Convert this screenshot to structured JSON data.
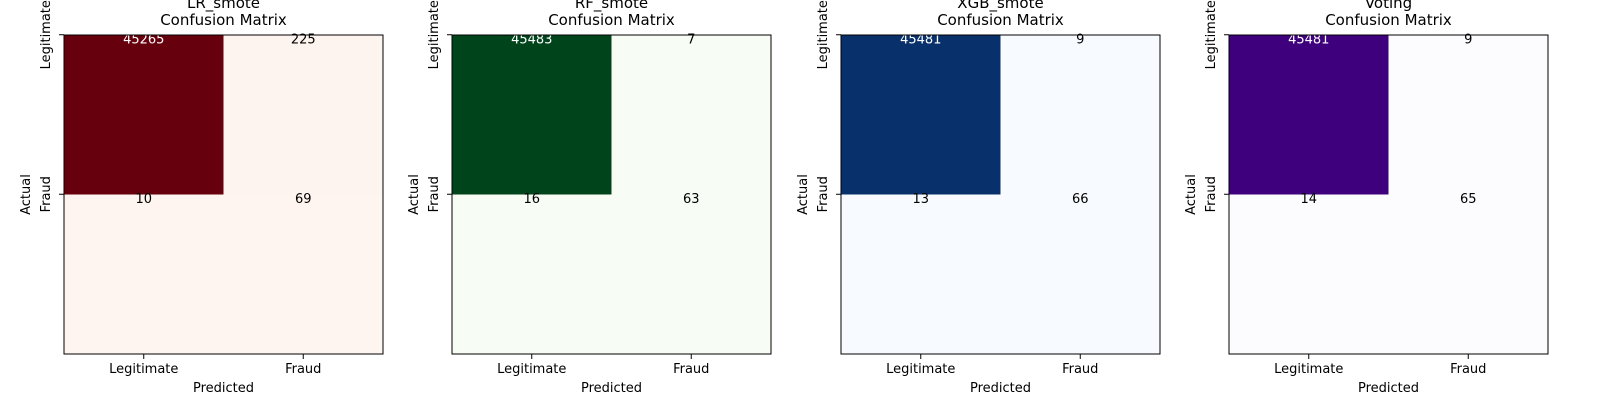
{
  "chart_data": [
    {
      "type": "heatmap",
      "title": "LR_smote",
      "subtitle": "Confusion Matrix",
      "xlabel": "Predicted",
      "ylabel": "Actual",
      "x_categories": [
        "Legitimate",
        "Fraud"
      ],
      "y_categories": [
        "Legitimate",
        "Fraud"
      ],
      "matrix": [
        [
          45265,
          225
        ],
        [
          10,
          69
        ]
      ],
      "colormap": {
        "low": "#fff5f0",
        "high": "#67000d"
      }
    },
    {
      "type": "heatmap",
      "title": "RF_smote",
      "subtitle": "Confusion Matrix",
      "xlabel": "Predicted",
      "ylabel": "Actual",
      "x_categories": [
        "Legitimate",
        "Fraud"
      ],
      "y_categories": [
        "Legitimate",
        "Fraud"
      ],
      "matrix": [
        [
          45483,
          7
        ],
        [
          16,
          63
        ]
      ],
      "colormap": {
        "low": "#f7fcf5",
        "high": "#00441b"
      }
    },
    {
      "type": "heatmap",
      "title": "XGB_smote",
      "subtitle": "Confusion Matrix",
      "xlabel": "Predicted",
      "ylabel": "Actual",
      "x_categories": [
        "Legitimate",
        "Fraud"
      ],
      "y_categories": [
        "Legitimate",
        "Fraud"
      ],
      "matrix": [
        [
          45481,
          9
        ],
        [
          13,
          66
        ]
      ],
      "colormap": {
        "low": "#f7fbff",
        "high": "#08306b"
      }
    },
    {
      "type": "heatmap",
      "title": "Voting",
      "subtitle": "Confusion Matrix",
      "xlabel": "Predicted",
      "ylabel": "Actual",
      "x_categories": [
        "Legitimate",
        "Fraud"
      ],
      "y_categories": [
        "Legitimate",
        "Fraud"
      ],
      "matrix": [
        [
          45481,
          9
        ],
        [
          14,
          65
        ]
      ],
      "colormap": {
        "low": "#fcfbfd",
        "high": "#3f007d"
      }
    }
  ]
}
